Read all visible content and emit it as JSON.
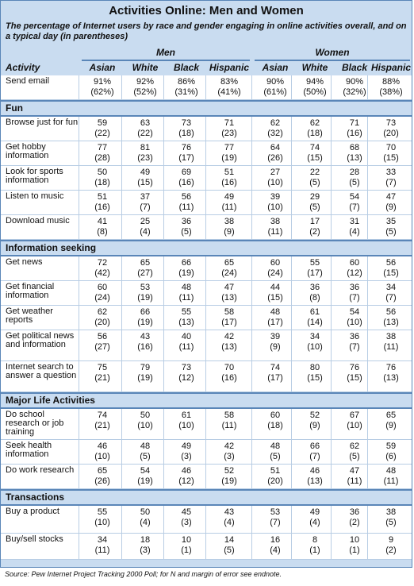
{
  "table": {
    "title": "Activities Online: Men and Women",
    "subtitle": "The percentage of Internet users by race and gender engaging in online activities overall, and on a typical day (in parentheses)",
    "group_men": "Men",
    "group_women": "Women",
    "col_activity": "Activity",
    "columns": [
      "Asian",
      "White",
      "Black",
      "Hispanic",
      "Asian",
      "White",
      "Black",
      "Hispanic"
    ],
    "sections": [
      {
        "name": "",
        "rows": [
          {
            "label": "Send email",
            "values": [
              "91%",
              "92%",
              "86%",
              "83%",
              "90%",
              "94%",
              "90%",
              "88%"
            ],
            "daily": [
              "(62%)",
              "(52%)",
              "(31%)",
              "(41%)",
              "(61%)",
              "(50%)",
              "(32%)",
              "(38%)"
            ]
          }
        ]
      },
      {
        "name": "Fun",
        "rows": [
          {
            "label": "Browse just for fun",
            "values": [
              "59",
              "63",
              "73",
              "71",
              "62",
              "62",
              "71",
              "73"
            ],
            "daily": [
              "(22)",
              "(22)",
              "(18)",
              "(23)",
              "(32)",
              "(18)",
              "(16)",
              "(20)"
            ]
          },
          {
            "label": "Get hobby information",
            "values": [
              "77",
              "81",
              "76",
              "77",
              "64",
              "74",
              "68",
              "70"
            ],
            "daily": [
              "(28)",
              "(23)",
              "(17)",
              "(19)",
              "(26)",
              "(15)",
              "(13)",
              "(15)"
            ]
          },
          {
            "label": "Look for sports information",
            "values": [
              "50",
              "49",
              "69",
              "51",
              "27",
              "22",
              "28",
              "33"
            ],
            "daily": [
              "(18)",
              "(15)",
              "(16)",
              "(16)",
              "(10)",
              "(5)",
              "(5)",
              "(7)"
            ]
          },
          {
            "label": "Listen to music",
            "values": [
              "51",
              "37",
              "56",
              "49",
              "39",
              "29",
              "54",
              "47"
            ],
            "daily": [
              "(16)",
              "(7)",
              "(11)",
              "(11)",
              "(10)",
              "(5)",
              "(7)",
              "(9)"
            ]
          },
          {
            "label": "Download music",
            "values": [
              "41",
              "25",
              "36",
              "38",
              "38",
              "17",
              "31",
              "35"
            ],
            "daily": [
              "(8)",
              "(4)",
              "(5)",
              "(9)",
              "(11)",
              "(2)",
              "(4)",
              "(5)"
            ]
          }
        ]
      },
      {
        "name": "Information seeking",
        "rows": [
          {
            "label": "Get news",
            "values": [
              "72",
              "65",
              "66",
              "65",
              "60",
              "55",
              "60",
              "56"
            ],
            "daily": [
              "(42)",
              "(27)",
              "(19)",
              "(24)",
              "(24)",
              "(17)",
              "(12)",
              "(15)"
            ]
          },
          {
            "label": "Get financial information",
            "values": [
              "60",
              "53",
              "48",
              "47",
              "44",
              "36",
              "36",
              "34"
            ],
            "daily": [
              "(24)",
              "(19)",
              "(11)",
              "(13)",
              "(15)",
              "(8)",
              "(7)",
              "(7)"
            ]
          },
          {
            "label": "Get weather reports",
            "values": [
              "62",
              "66",
              "55",
              "58",
              "48",
              "61",
              "54",
              "56"
            ],
            "daily": [
              "(20)",
              "(19)",
              "(13)",
              "(17)",
              "(17)",
              "(14)",
              "(10)",
              "(13)"
            ]
          },
          {
            "label": "Get political news and information",
            "values": [
              "56",
              "43",
              "40",
              "42",
              "39",
              "34",
              "36",
              "38"
            ],
            "daily": [
              "(27)",
              "(16)",
              "(11)",
              "(13)",
              "(9)",
              "(10)",
              "(7)",
              "(11)"
            ]
          },
          {
            "label": "Internet search to answer a question",
            "values": [
              "75",
              "79",
              "73",
              "70",
              "74",
              "80",
              "76",
              "76"
            ],
            "daily": [
              "(21)",
              "(19)",
              "(12)",
              "(16)",
              "(17)",
              "(15)",
              "(15)",
              "(13)"
            ]
          }
        ]
      },
      {
        "name": "Major Life Activities",
        "rows": [
          {
            "label": "Do school research or job training",
            "values": [
              "74",
              "50",
              "61",
              "58",
              "60",
              "52",
              "67",
              "65"
            ],
            "daily": [
              "(21)",
              "(10)",
              "(10)",
              "(11)",
              "(18)",
              "(9)",
              "(10)",
              "(9)"
            ]
          },
          {
            "label": "Seek health information",
            "values": [
              "46",
              "48",
              "49",
              "42",
              "48",
              "66",
              "62",
              "59"
            ],
            "daily": [
              "(10)",
              "(5)",
              "(3)",
              "(3)",
              "(5)",
              "(7)",
              "(5)",
              "(6)"
            ]
          },
          {
            "label": "Do work research",
            "values": [
              "65",
              "54",
              "46",
              "52",
              "51",
              "46",
              "47",
              "48"
            ],
            "daily": [
              "(26)",
              "(19)",
              "(12)",
              "(19)",
              "(20)",
              "(13)",
              "(11)",
              "(11)"
            ]
          }
        ]
      },
      {
        "name": "Transactions",
        "rows": [
          {
            "label": "Buy a product",
            "values": [
              "55",
              "50",
              "45",
              "43",
              "53",
              "49",
              "36",
              "38"
            ],
            "daily": [
              "(10)",
              "(4)",
              "(3)",
              "(4)",
              "(7)",
              "(4)",
              "(2)",
              "(5)"
            ]
          },
          {
            "label": "Buy/sell stocks",
            "values": [
              "34",
              "18",
              "10",
              "14",
              "16",
              "8",
              "10",
              "9"
            ],
            "daily": [
              "(11)",
              "(3)",
              "(1)",
              "(5)",
              "(4)",
              "(1)",
              "(1)",
              "(2)"
            ]
          }
        ]
      }
    ]
  },
  "source": "Source: Pew Internet Project Tracking 2000 Poll; for N and margin of error see endnote."
}
